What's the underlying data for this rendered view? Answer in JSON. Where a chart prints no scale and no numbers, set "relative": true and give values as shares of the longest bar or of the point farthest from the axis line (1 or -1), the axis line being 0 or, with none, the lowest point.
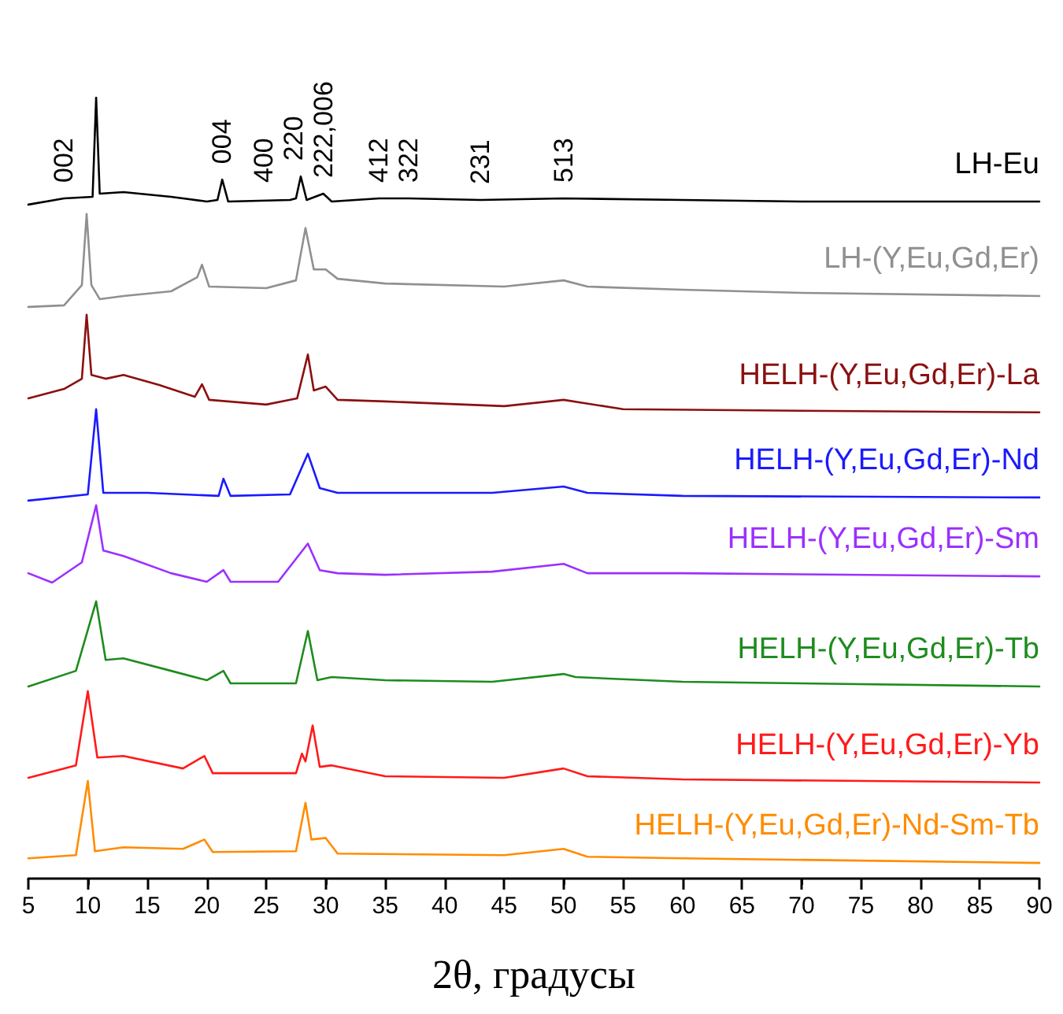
{
  "chart_data": {
    "type": "line",
    "relative": true,
    "xlabel": "2θ, градусы",
    "xlim": [
      5,
      90
    ],
    "xticks": [
      5,
      10,
      15,
      20,
      25,
      30,
      35,
      40,
      45,
      50,
      55,
      60,
      65,
      70,
      75,
      80,
      85,
      90
    ],
    "legend": false,
    "grid": false,
    "series": [
      {
        "name": "LH-Eu",
        "color": "#000000",
        "x": [
          5,
          8,
          10.4,
          10.7,
          11,
          13,
          17,
          20,
          20.9,
          21.3,
          21.8,
          27,
          27.5,
          27.9,
          28.4,
          29.8,
          30.5,
          34.5,
          37,
          43,
          50,
          60,
          70,
          90
        ],
        "values": [
          0.863,
          0.871,
          0.873,
          1.0,
          0.877,
          0.879,
          0.873,
          0.867,
          0.869,
          0.895,
          0.867,
          0.869,
          0.871,
          0.899,
          0.869,
          0.877,
          0.867,
          0.871,
          0.871,
          0.869,
          0.871,
          0.869,
          0.867,
          0.867
        ]
      },
      {
        "name": "LH-(Y,Eu,Gd,Er)",
        "color": "#909090",
        "x": [
          5,
          8,
          9.5,
          9.9,
          10.3,
          11,
          13,
          17,
          19.2,
          19.6,
          20.2,
          25,
          27.5,
          28.3,
          29,
          30,
          31,
          35,
          45,
          50,
          52,
          60,
          70,
          90
        ],
        "values": [
          0.732,
          0.734,
          0.76,
          0.851,
          0.76,
          0.742,
          0.746,
          0.752,
          0.77,
          0.786,
          0.758,
          0.756,
          0.766,
          0.833,
          0.78,
          0.78,
          0.768,
          0.762,
          0.758,
          0.766,
          0.758,
          0.754,
          0.75,
          0.746
        ]
      },
      {
        "name": "HELH-(Y,Eu,Gd,Er)-La",
        "color": "#8b1010",
        "x": [
          5,
          8,
          9.5,
          9.9,
          10.3,
          11.5,
          13,
          16,
          19,
          19.6,
          20.2,
          25,
          27.6,
          28.5,
          29,
          30,
          31,
          35,
          45,
          50,
          55,
          70,
          90
        ],
        "values": [
          0.615,
          0.627,
          0.64,
          0.722,
          0.645,
          0.64,
          0.645,
          0.632,
          0.617,
          0.633,
          0.613,
          0.607,
          0.615,
          0.671,
          0.625,
          0.63,
          0.613,
          0.611,
          0.605,
          0.613,
          0.601,
          0.599,
          0.597
        ]
      },
      {
        "name": "HELH-(Y,Eu,Gd,Er)-Nd",
        "color": "#1a1aff",
        "x": [
          5,
          10,
          10.7,
          11.3,
          15,
          21,
          21.4,
          22,
          27,
          28.5,
          29.5,
          31,
          35,
          44,
          50,
          52,
          60,
          90
        ],
        "values": [
          0.484,
          0.492,
          0.601,
          0.494,
          0.494,
          0.49,
          0.512,
          0.49,
          0.492,
          0.544,
          0.5,
          0.494,
          0.494,
          0.494,
          0.502,
          0.494,
          0.49,
          0.488
        ]
      },
      {
        "name": "HELH-(Y,Eu,Gd,Er)-Sm",
        "color": "#9b30ff",
        "x": [
          5,
          7,
          9.5,
          10.7,
          11.3,
          13,
          17,
          20,
          21.4,
          22,
          26,
          28.5,
          29.5,
          31,
          35,
          44,
          50,
          52,
          60,
          90
        ],
        "values": [
          0.391,
          0.379,
          0.405,
          0.478,
          0.42,
          0.413,
          0.391,
          0.38,
          0.395,
          0.38,
          0.38,
          0.429,
          0.395,
          0.391,
          0.389,
          0.393,
          0.403,
          0.391,
          0.391,
          0.387
        ]
      },
      {
        "name": "HELH-(Y,Eu,Gd,Er)-Tb",
        "color": "#1e8c1e",
        "x": [
          5,
          9,
          10.7,
          11.5,
          13,
          17,
          20,
          21.4,
          22,
          27.5,
          28.5,
          29.3,
          30.5,
          35,
          44,
          50,
          51,
          60,
          90
        ],
        "values": [
          0.246,
          0.266,
          0.355,
          0.28,
          0.282,
          0.266,
          0.254,
          0.266,
          0.25,
          0.25,
          0.317,
          0.254,
          0.258,
          0.254,
          0.252,
          0.262,
          0.258,
          0.252,
          0.246
        ]
      },
      {
        "name": "HELH-(Y,Eu,Gd,Er)-Yb",
        "color": "#ff1a1a",
        "x": [
          5,
          9,
          10,
          10.8,
          13,
          18,
          19.8,
          20.5,
          27.5,
          28,
          28.3,
          28.9,
          29.5,
          30.5,
          35,
          45,
          50,
          52,
          60,
          90
        ],
        "values": [
          0.129,
          0.145,
          0.24,
          0.155,
          0.157,
          0.141,
          0.157,
          0.135,
          0.135,
          0.16,
          0.15,
          0.196,
          0.143,
          0.145,
          0.131,
          0.129,
          0.141,
          0.131,
          0.127,
          0.123
        ]
      },
      {
        "name": "HELH-(Y,Eu,Gd,Er)-Nd-Sm-Tb",
        "color": "#ff8c00",
        "x": [
          5,
          9,
          10,
          10.6,
          13,
          18,
          19.8,
          20.5,
          27.5,
          28.3,
          28.8,
          30,
          31,
          45,
          50,
          52,
          60,
          90
        ],
        "values": [
          0.026,
          0.03,
          0.125,
          0.035,
          0.04,
          0.038,
          0.05,
          0.034,
          0.035,
          0.097,
          0.05,
          0.052,
          0.032,
          0.03,
          0.038,
          0.028,
          0.026,
          0.02
        ]
      }
    ],
    "annotations": [
      {
        "text": "002",
        "x": 8,
        "y": 0.871
      },
      {
        "text": "004",
        "x": 21.3,
        "y": 0.895
      },
      {
        "text": "400",
        "x": 27.5,
        "y": 0.871
      },
      {
        "text": "220",
        "x": 27.9,
        "y": 0.899
      },
      {
        "text": "222,006",
        "x": 29.8,
        "y": 0.877
      },
      {
        "text": "412",
        "x": 34.5,
        "y": 0.871
      },
      {
        "text": "322",
        "x": 37,
        "y": 0.871
      },
      {
        "text": "231",
        "x": 43,
        "y": 0.869
      },
      {
        "text": "513",
        "x": 50,
        "y": 0.871
      }
    ]
  }
}
